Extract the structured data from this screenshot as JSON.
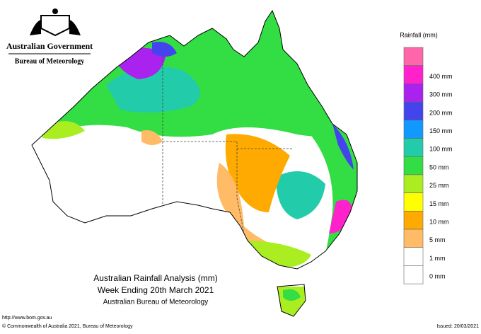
{
  "header": {
    "government": "Australian Government",
    "agency": "Bureau of Meteorology"
  },
  "title": {
    "line1": "Australian Rainfall Analysis (mm)",
    "line2": "Week Ending 20th March 2021",
    "line3": "Australian Bureau of Meteorology"
  },
  "legend": {
    "title": "Rainfall (mm)",
    "top_color": "#ff66aa",
    "items": [
      {
        "label": "400 mm",
        "color": "#ff22cc"
      },
      {
        "label": "300 mm",
        "color": "#aa22ee"
      },
      {
        "label": "200 mm",
        "color": "#4444ee"
      },
      {
        "label": "150 mm",
        "color": "#1199ff"
      },
      {
        "label": "100 mm",
        "color": "#22ccaa"
      },
      {
        "label": "50 mm",
        "color": "#33dd44"
      },
      {
        "label": "25 mm",
        "color": "#aaee22"
      },
      {
        "label": "15 mm",
        "color": "#ffff00"
      },
      {
        "label": "10 mm",
        "color": "#ffaa00"
      },
      {
        "label": "5 mm",
        "color": "#ffbb66"
      },
      {
        "label": "1 mm",
        "color": "#ffffff"
      },
      {
        "label": "0 mm",
        "color": "#ffffff"
      }
    ]
  },
  "footer": {
    "url": "http://www.bom.gov.au",
    "copyright": "© Commonwealth of Australia 2021, Bureau of Meteorology",
    "issued": "Issued: 20/03/2021"
  }
}
